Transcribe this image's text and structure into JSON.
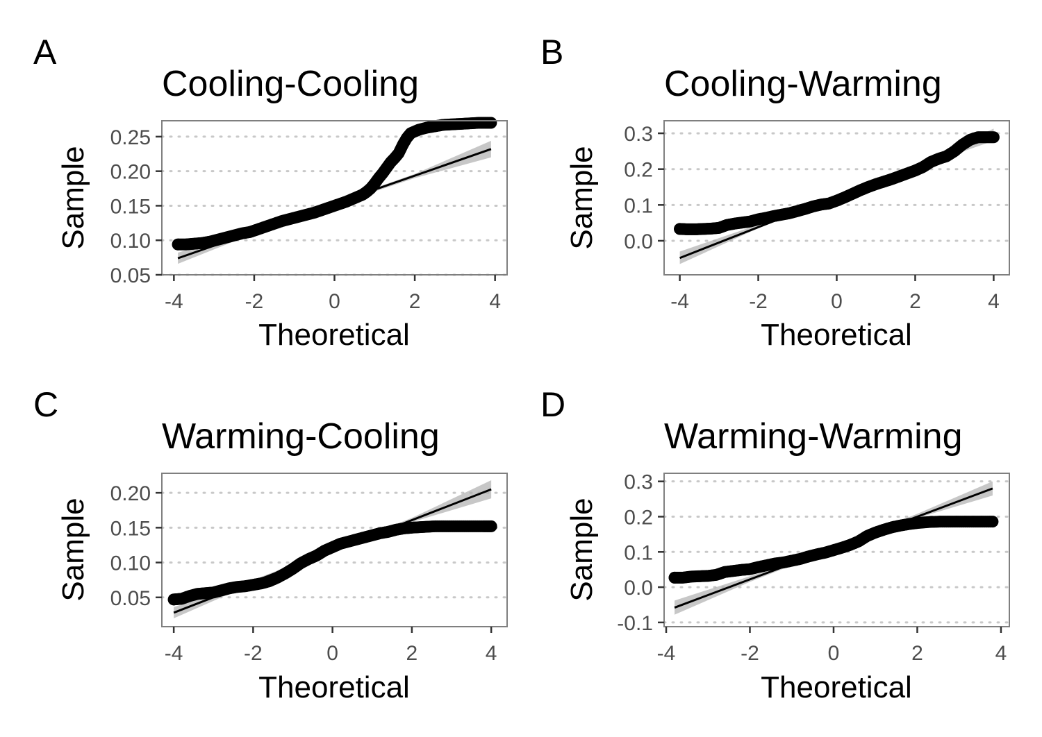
{
  "chart_data": [
    {
      "type": "scatter",
      "tag": "A",
      "title": "Cooling-Cooling",
      "xlabel": "Theoretical",
      "ylabel": "Sample",
      "xlim": [
        -4.3,
        4.3
      ],
      "ylim": [
        0.05,
        0.273
      ],
      "xticks": [
        -4,
        -2,
        0,
        2,
        4
      ],
      "xtick_labels": [
        "-4",
        "-2",
        "0",
        "2",
        "4"
      ],
      "yticks": [
        0.05,
        0.1,
        0.15,
        0.2,
        0.25
      ],
      "ytick_labels": [
        "0.05",
        "0.10",
        "0.15",
        "0.20",
        "0.25"
      ],
      "qq_points": [
        [
          -3.9,
          0.094
        ],
        [
          -3.7,
          0.094
        ],
        [
          -3.5,
          0.095
        ],
        [
          -3.3,
          0.096
        ],
        [
          -3.1,
          0.098
        ],
        [
          -2.9,
          0.101
        ],
        [
          -2.7,
          0.104
        ],
        [
          -2.5,
          0.107
        ],
        [
          -2.3,
          0.11
        ],
        [
          -2.1,
          0.112
        ],
        [
          -1.9,
          0.116
        ],
        [
          -1.7,
          0.12
        ],
        [
          -1.5,
          0.124
        ],
        [
          -1.3,
          0.128
        ],
        [
          -1.1,
          0.131
        ],
        [
          -0.9,
          0.134
        ],
        [
          -0.7,
          0.137
        ],
        [
          -0.5,
          0.14
        ],
        [
          -0.3,
          0.144
        ],
        [
          -0.1,
          0.148
        ],
        [
          0.1,
          0.152
        ],
        [
          0.3,
          0.156
        ],
        [
          0.5,
          0.161
        ],
        [
          0.7,
          0.166
        ],
        [
          0.8,
          0.17
        ],
        [
          0.9,
          0.175
        ],
        [
          1.0,
          0.182
        ],
        [
          1.1,
          0.19
        ],
        [
          1.2,
          0.197
        ],
        [
          1.3,
          0.205
        ],
        [
          1.4,
          0.213
        ],
        [
          1.5,
          0.219
        ],
        [
          1.6,
          0.226
        ],
        [
          1.7,
          0.238
        ],
        [
          1.8,
          0.248
        ],
        [
          1.9,
          0.255
        ],
        [
          2.1,
          0.26
        ],
        [
          2.3,
          0.263
        ],
        [
          2.5,
          0.265
        ],
        [
          2.7,
          0.267
        ],
        [
          3.0,
          0.268
        ],
        [
          3.3,
          0.269
        ],
        [
          3.6,
          0.27
        ],
        [
          3.9,
          0.27
        ]
      ],
      "ref_line": [
        [
          -3.9,
          0.074
        ],
        [
          3.9,
          0.232
        ]
      ],
      "band": [
        [
          -3.9,
          0.066,
          0.082
        ],
        [
          -2.0,
          0.11,
          0.116
        ],
        [
          0.0,
          0.151,
          0.155
        ],
        [
          2.0,
          0.19,
          0.196
        ],
        [
          3.9,
          0.22,
          0.244
        ]
      ]
    },
    {
      "type": "scatter",
      "tag": "B",
      "title": "Cooling-Warming",
      "xlabel": "Theoretical",
      "ylabel": "Sample",
      "xlim": [
        -4.4,
        4.4
      ],
      "ylim": [
        -0.095,
        0.335
      ],
      "xticks": [
        -4,
        -2,
        0,
        2,
        4
      ],
      "xtick_labels": [
        "-4",
        "-2",
        "0",
        "2",
        "4"
      ],
      "yticks": [
        0.0,
        0.1,
        0.2,
        0.3
      ],
      "ytick_labels": [
        "0.0",
        "0.1",
        "0.2",
        "0.3"
      ],
      "qq_points": [
        [
          -4.0,
          0.033
        ],
        [
          -3.8,
          0.032
        ],
        [
          -3.6,
          0.032
        ],
        [
          -3.4,
          0.033
        ],
        [
          -3.2,
          0.034
        ],
        [
          -3.0,
          0.036
        ],
        [
          -2.8,
          0.044
        ],
        [
          -2.6,
          0.048
        ],
        [
          -2.4,
          0.051
        ],
        [
          -2.2,
          0.054
        ],
        [
          -2.0,
          0.06
        ],
        [
          -1.8,
          0.064
        ],
        [
          -1.6,
          0.069
        ],
        [
          -1.4,
          0.073
        ],
        [
          -1.2,
          0.077
        ],
        [
          -1.0,
          0.083
        ],
        [
          -0.8,
          0.089
        ],
        [
          -0.6,
          0.096
        ],
        [
          -0.4,
          0.101
        ],
        [
          -0.2,
          0.104
        ],
        [
          0.0,
          0.112
        ],
        [
          0.2,
          0.121
        ],
        [
          0.4,
          0.131
        ],
        [
          0.6,
          0.141
        ],
        [
          0.8,
          0.15
        ],
        [
          1.0,
          0.158
        ],
        [
          1.2,
          0.165
        ],
        [
          1.4,
          0.172
        ],
        [
          1.6,
          0.18
        ],
        [
          1.8,
          0.188
        ],
        [
          2.0,
          0.196
        ],
        [
          2.2,
          0.206
        ],
        [
          2.4,
          0.22
        ],
        [
          2.6,
          0.229
        ],
        [
          2.8,
          0.236
        ],
        [
          3.0,
          0.25
        ],
        [
          3.2,
          0.268
        ],
        [
          3.4,
          0.282
        ],
        [
          3.6,
          0.289
        ],
        [
          3.8,
          0.289
        ],
        [
          4.0,
          0.289
        ]
      ],
      "ref_line": [
        [
          -4.0,
          -0.048
        ],
        [
          4.0,
          0.296
        ]
      ],
      "band": [
        [
          -4.0,
          -0.065,
          -0.03
        ],
        [
          -2.0,
          0.035,
          0.045
        ],
        [
          0.0,
          0.119,
          0.125
        ],
        [
          2.0,
          0.203,
          0.213
        ],
        [
          4.0,
          0.279,
          0.313
        ]
      ]
    },
    {
      "type": "scatter",
      "tag": "C",
      "title": "Warming-Cooling",
      "xlabel": "Theoretical",
      "ylabel": "Sample",
      "xlim": [
        -4.3,
        4.4
      ],
      "ylim": [
        0.008,
        0.228
      ],
      "xticks": [
        -4,
        -2,
        0,
        2,
        4
      ],
      "xtick_labels": [
        "-4",
        "-2",
        "0",
        "2",
        "4"
      ],
      "yticks": [
        0.05,
        0.1,
        0.15,
        0.2
      ],
      "ytick_labels": [
        "0.05",
        "0.10",
        "0.15",
        "0.20"
      ],
      "qq_points": [
        [
          -4.0,
          0.047
        ],
        [
          -3.8,
          0.048
        ],
        [
          -3.6,
          0.052
        ],
        [
          -3.4,
          0.055
        ],
        [
          -3.2,
          0.056
        ],
        [
          -3.0,
          0.057
        ],
        [
          -2.8,
          0.06
        ],
        [
          -2.6,
          0.063
        ],
        [
          -2.4,
          0.065
        ],
        [
          -2.2,
          0.066
        ],
        [
          -2.0,
          0.068
        ],
        [
          -1.8,
          0.07
        ],
        [
          -1.6,
          0.073
        ],
        [
          -1.4,
          0.078
        ],
        [
          -1.2,
          0.084
        ],
        [
          -1.0,
          0.091
        ],
        [
          -0.8,
          0.099
        ],
        [
          -0.6,
          0.105
        ],
        [
          -0.4,
          0.11
        ],
        [
          -0.2,
          0.117
        ],
        [
          0.0,
          0.122
        ],
        [
          0.2,
          0.127
        ],
        [
          0.4,
          0.13
        ],
        [
          0.6,
          0.133
        ],
        [
          0.8,
          0.136
        ],
        [
          1.0,
          0.139
        ],
        [
          1.2,
          0.142
        ],
        [
          1.4,
          0.144
        ],
        [
          1.6,
          0.147
        ],
        [
          1.8,
          0.149
        ],
        [
          2.0,
          0.15
        ],
        [
          2.3,
          0.151
        ],
        [
          2.6,
          0.152
        ],
        [
          2.9,
          0.152
        ],
        [
          3.2,
          0.152
        ],
        [
          3.5,
          0.152
        ],
        [
          3.8,
          0.152
        ],
        [
          4.0,
          0.152
        ]
      ],
      "ref_line": [
        [
          -4.0,
          0.028
        ],
        [
          4.0,
          0.205
        ]
      ],
      "band": [
        [
          -4.0,
          0.02,
          0.036
        ],
        [
          -2.0,
          0.07,
          0.075
        ],
        [
          0.0,
          0.115,
          0.119
        ],
        [
          2.0,
          0.158,
          0.164
        ],
        [
          4.0,
          0.192,
          0.218
        ]
      ]
    },
    {
      "type": "scatter",
      "tag": "D",
      "title": "Warming-Warming",
      "xlabel": "Theoretical",
      "ylabel": "Sample",
      "xlim": [
        -4.05,
        4.2
      ],
      "ylim": [
        -0.112,
        0.323
      ],
      "xticks": [
        -4,
        -2,
        0,
        2,
        4
      ],
      "xtick_labels": [
        "-4",
        "-2",
        "0",
        "2",
        "4"
      ],
      "yticks": [
        -0.1,
        0.0,
        0.1,
        0.2,
        0.3
      ],
      "ytick_labels": [
        "-0.1",
        "0.0",
        "0.1",
        "0.2",
        "0.3"
      ],
      "qq_points": [
        [
          -3.8,
          0.027
        ],
        [
          -3.6,
          0.027
        ],
        [
          -3.4,
          0.03
        ],
        [
          -3.2,
          0.031
        ],
        [
          -3.0,
          0.032
        ],
        [
          -2.8,
          0.035
        ],
        [
          -2.6,
          0.043
        ],
        [
          -2.4,
          0.046
        ],
        [
          -2.2,
          0.049
        ],
        [
          -2.0,
          0.051
        ],
        [
          -1.8,
          0.057
        ],
        [
          -1.6,
          0.062
        ],
        [
          -1.4,
          0.067
        ],
        [
          -1.2,
          0.07
        ],
        [
          -1.0,
          0.075
        ],
        [
          -0.8,
          0.08
        ],
        [
          -0.6,
          0.087
        ],
        [
          -0.4,
          0.093
        ],
        [
          -0.2,
          0.098
        ],
        [
          0.0,
          0.105
        ],
        [
          0.2,
          0.112
        ],
        [
          0.4,
          0.12
        ],
        [
          0.6,
          0.13
        ],
        [
          0.8,
          0.145
        ],
        [
          1.0,
          0.155
        ],
        [
          1.2,
          0.163
        ],
        [
          1.4,
          0.17
        ],
        [
          1.6,
          0.175
        ],
        [
          1.8,
          0.179
        ],
        [
          2.0,
          0.182
        ],
        [
          2.3,
          0.185
        ],
        [
          2.6,
          0.186
        ],
        [
          2.9,
          0.186
        ],
        [
          3.2,
          0.186
        ],
        [
          3.5,
          0.186
        ],
        [
          3.8,
          0.186
        ]
      ],
      "ref_line": [
        [
          -3.8,
          -0.058
        ],
        [
          3.8,
          0.28
        ]
      ],
      "band": [
        [
          -3.8,
          -0.078,
          -0.038
        ],
        [
          -2.0,
          0.015,
          0.031
        ],
        [
          0.0,
          0.108,
          0.114
        ],
        [
          2.0,
          0.196,
          0.208
        ],
        [
          3.8,
          0.26,
          0.3
        ]
      ]
    }
  ],
  "colors": {
    "points": "#000000",
    "line": "#000000",
    "band": "#a9a9a9",
    "grid": "#c8c8c8",
    "frame": "#7f7f7f"
  }
}
